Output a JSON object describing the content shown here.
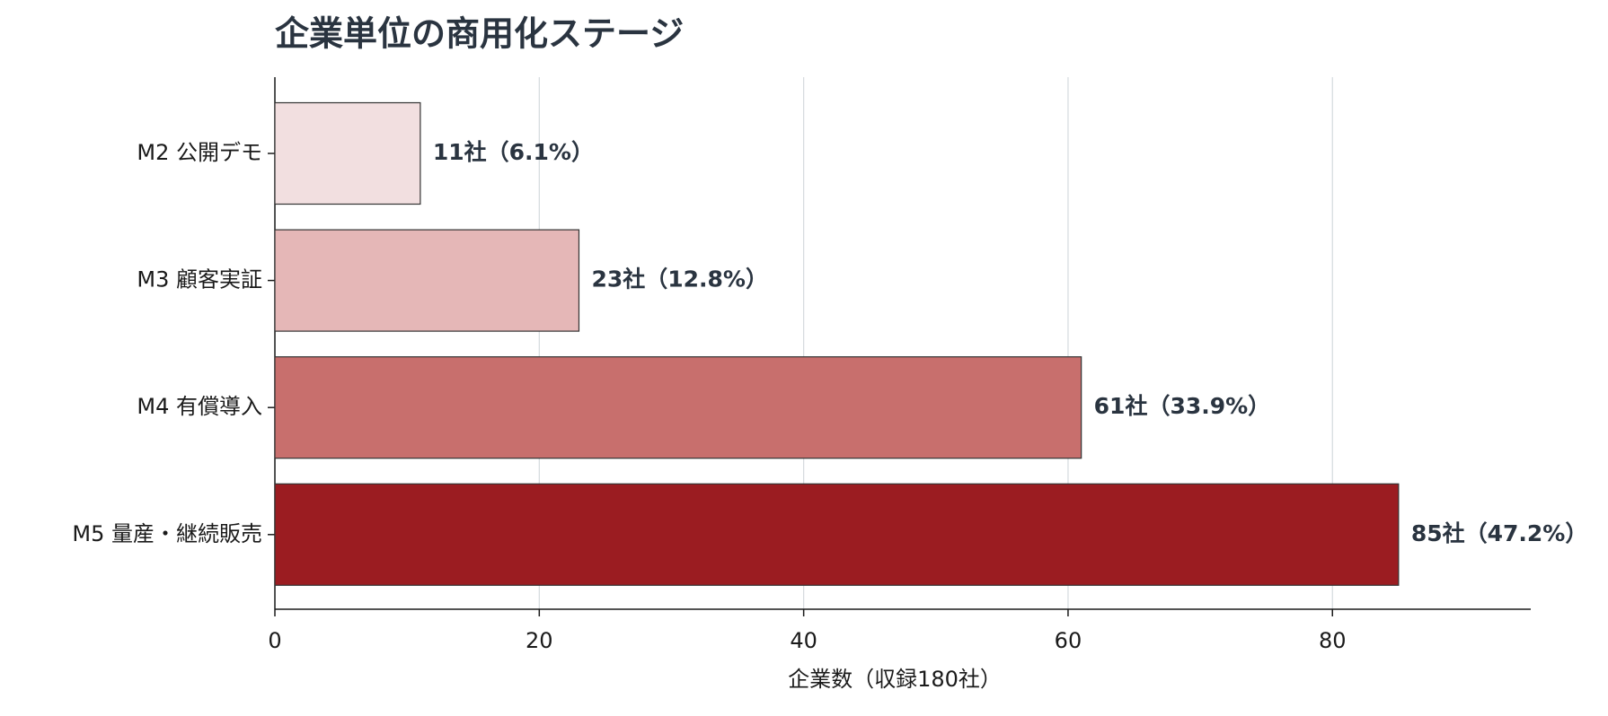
{
  "chart_data": {
    "type": "barh",
    "title": "企業単位の商用化ステージ",
    "xlabel": "企業数（収録180社）",
    "categories": [
      "M2 公開デモ",
      "M3 顧客実証",
      "M4 有償導入",
      "M5 量産・継続販売"
    ],
    "values": [
      11,
      23,
      61,
      85
    ],
    "value_labels": [
      "11社（6.1%）",
      "23社（12.8%）",
      "61社（33.9%）",
      "85社（47.2%）"
    ],
    "colors": [
      "#f2dfe0",
      "#e5b7b7",
      "#c86f6d",
      "#9b1c21"
    ],
    "edgecolor": "#333333",
    "xlim": [
      0,
      95
    ],
    "xticks": [
      0,
      20,
      40,
      60,
      80
    ],
    "grid": true
  }
}
